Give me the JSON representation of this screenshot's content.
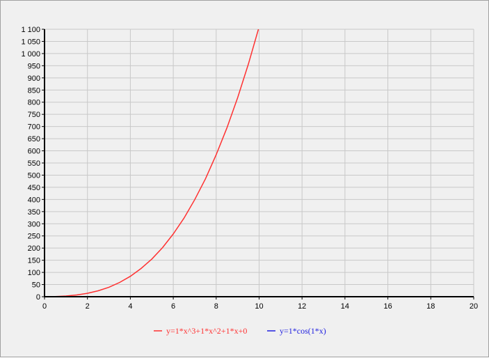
{
  "colors": {
    "background": "#f0f0f0",
    "grid": "#c8c8c8",
    "axis": "#000000",
    "series_1": "#ff3030",
    "series_2": "#2020e0"
  },
  "chart_data": {
    "type": "line",
    "title": "",
    "xlabel": "",
    "ylabel": "",
    "xlim": [
      0,
      20
    ],
    "ylim": [
      0,
      1100
    ],
    "x_ticks": [
      "0",
      "2",
      "4",
      "6",
      "8",
      "10",
      "12",
      "14",
      "16",
      "18",
      "20"
    ],
    "y_ticks": [
      "0",
      "50",
      "100",
      "150",
      "200",
      "250",
      "300",
      "350",
      "400",
      "450",
      "500",
      "550",
      "600",
      "650",
      "700",
      "750",
      "800",
      "850",
      "900",
      "950",
      "1 000",
      "1 050",
      "1 100"
    ],
    "grid": true,
    "legend_position": "bottom",
    "series": [
      {
        "name": "y=1*x^3+1*x^2+1*x+0",
        "color": "#ff3030",
        "x": [
          0,
          0.5,
          1,
          1.5,
          2,
          2.5,
          3,
          3.5,
          4,
          4.5,
          5,
          5.5,
          6,
          6.5,
          7,
          7.5,
          8,
          8.5,
          9,
          9.5,
          10
        ],
        "y": [
          0,
          0.9,
          3,
          7.1,
          14,
          24.4,
          39,
          58.6,
          84,
          116,
          155,
          202,
          258,
          323,
          399,
          485,
          584,
          694,
          819,
          957,
          1110
        ]
      },
      {
        "name": "y=1*cos(1*x)",
        "color": "#2020e0",
        "x": [
          0,
          0.5,
          1,
          1.5,
          2,
          2.5,
          3,
          3.5,
          4,
          4.5,
          5,
          5.5,
          6,
          6.5,
          7,
          7.5,
          8,
          8.5,
          9,
          9.5,
          10,
          10.5,
          11,
          11.5,
          12,
          12.5,
          13,
          13.5,
          14,
          14.5,
          15,
          15.5,
          16,
          16.5,
          17,
          17.5,
          18,
          18.5,
          19,
          19.5,
          20
        ],
        "y": [
          1,
          0.88,
          0.54,
          0.07,
          -0.42,
          -0.8,
          -0.99,
          -0.94,
          -0.65,
          -0.21,
          0.28,
          0.71,
          0.96,
          0.98,
          0.75,
          0.35,
          -0.15,
          -0.6,
          -0.91,
          -1,
          -0.84,
          -0.48,
          0.0,
          0.48,
          0.84,
          1,
          0.91,
          0.6,
          0.14,
          -0.35,
          -0.76,
          -0.98,
          -0.96,
          -0.71,
          -0.28,
          0.21,
          0.66,
          0.94,
          0.99,
          0.8,
          0.41
        ]
      }
    ]
  }
}
